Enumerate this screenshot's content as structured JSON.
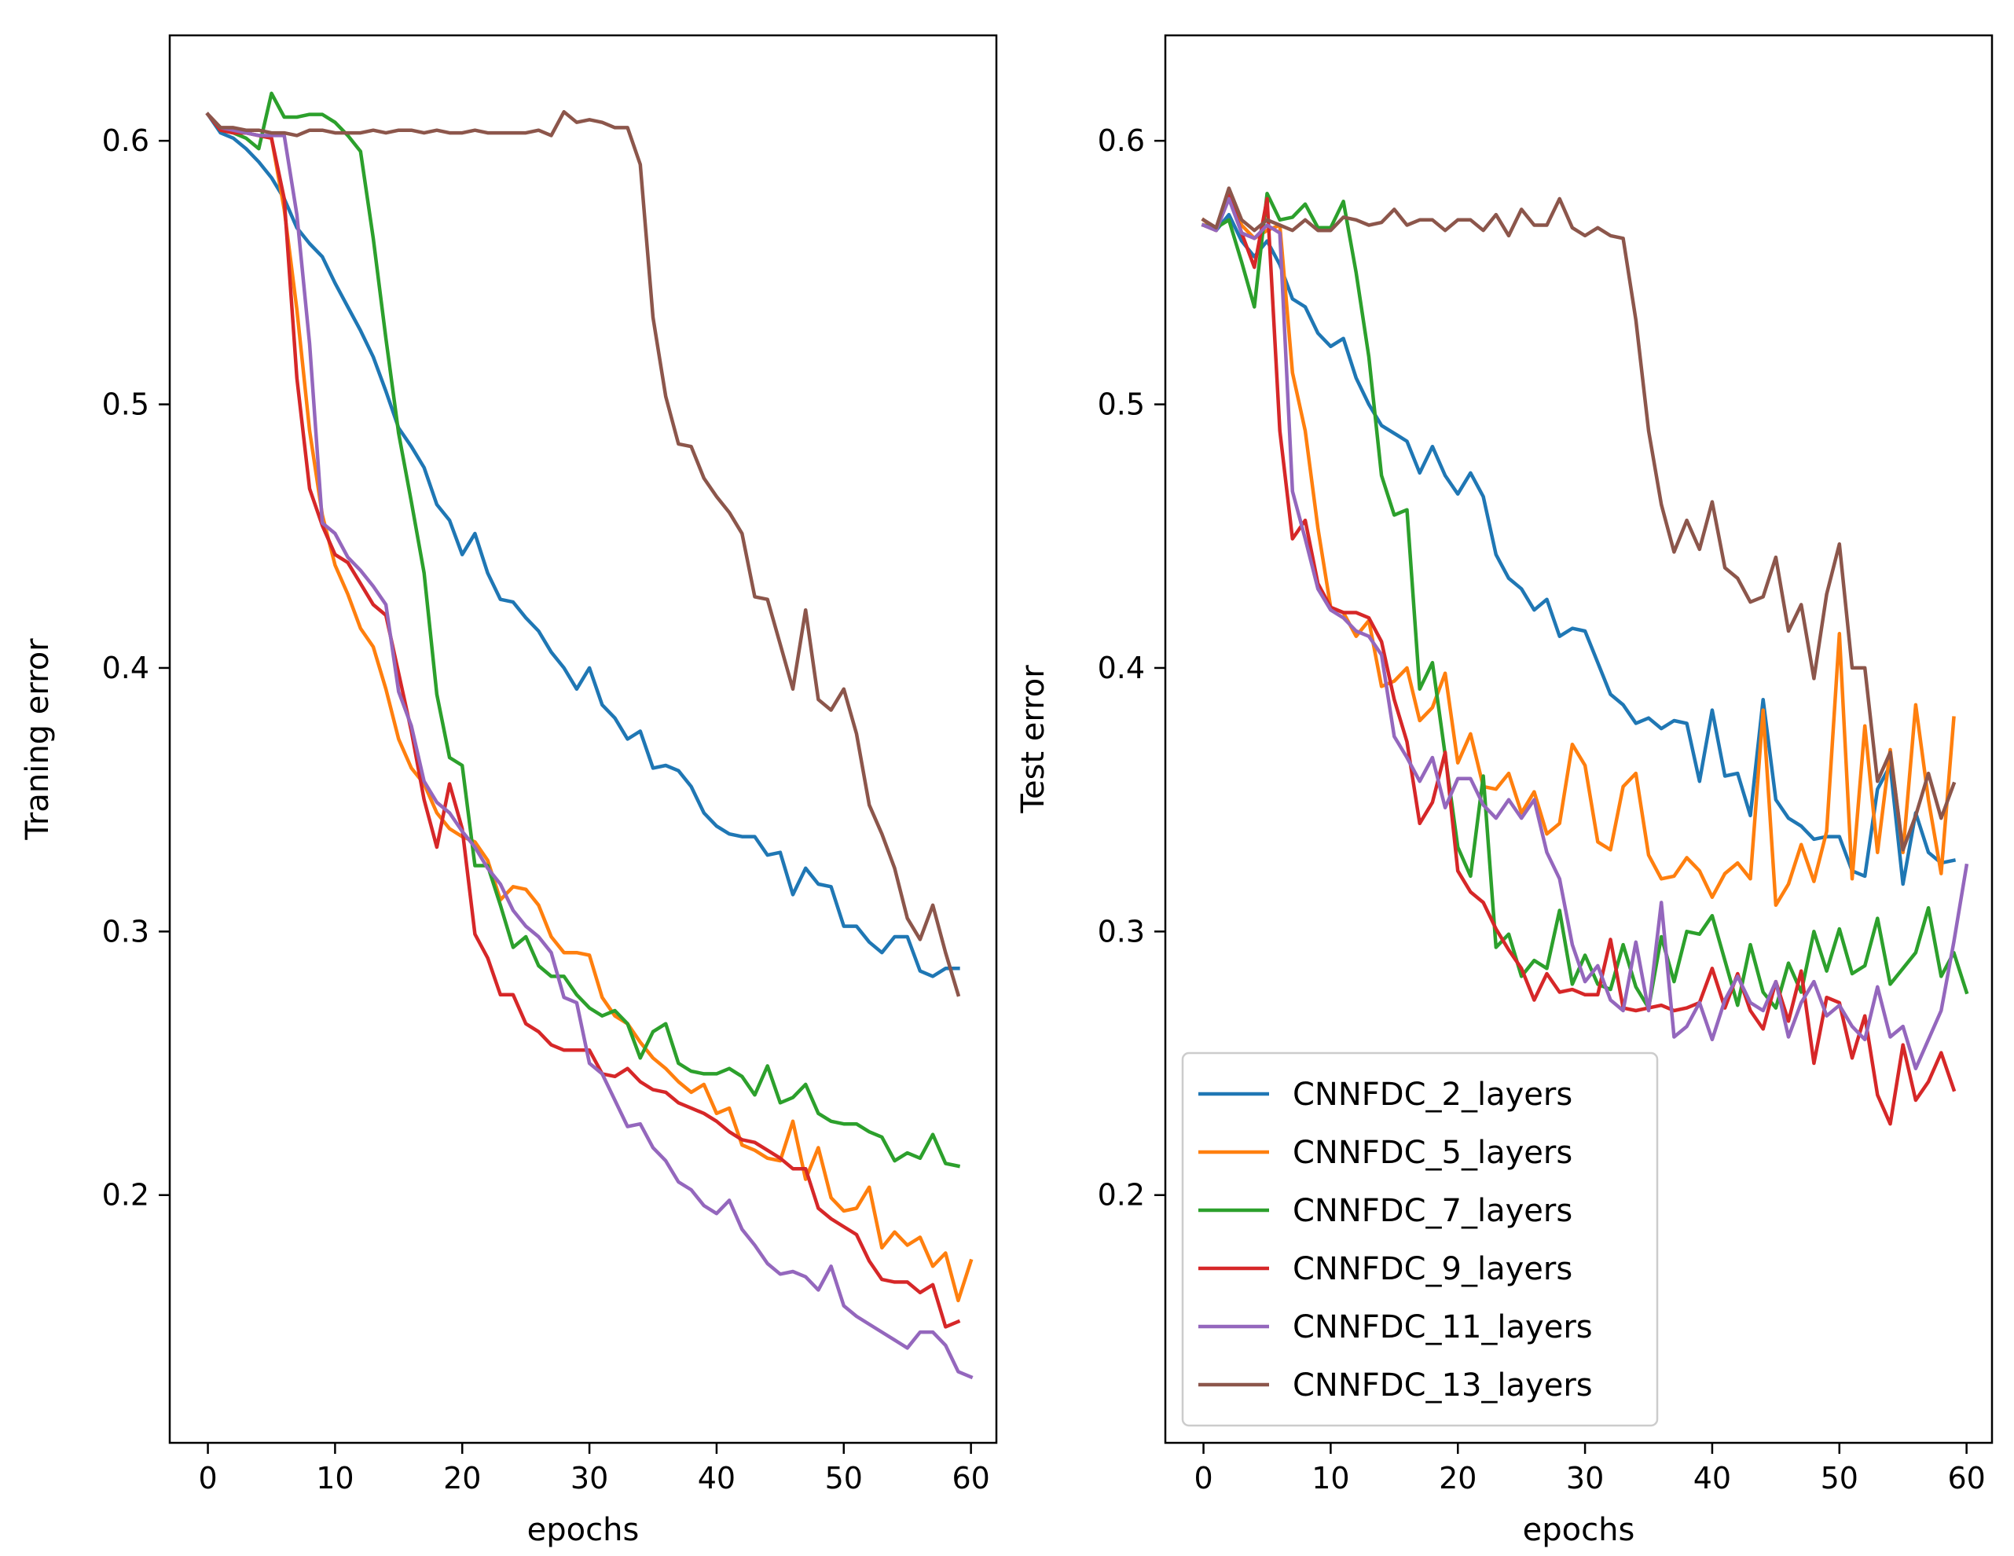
{
  "chart_data": [
    {
      "type": "line",
      "title": "",
      "xlabel": "epochs",
      "ylabel": "Traning error",
      "xlim": [
        -3,
        62
      ],
      "ylim": [
        0.106,
        0.64
      ],
      "xticks": [
        0,
        10,
        20,
        30,
        40,
        50,
        60
      ],
      "yticks": [
        0.2,
        0.3,
        0.4,
        0.5,
        0.6
      ],
      "grid": false,
      "legend": "none",
      "series": [
        {
          "name": "CNNFDC_2_layers",
          "color": "#1f77b4",
          "values": [
            0.61,
            0.603,
            0.601,
            0.597,
            0.592,
            0.586,
            0.578,
            0.567,
            0.561,
            0.556,
            0.546,
            0.537,
            0.528,
            0.518,
            0.505,
            0.491,
            0.484,
            0.476,
            0.462,
            0.456,
            0.443,
            0.451,
            0.436,
            0.426,
            0.425,
            0.419,
            0.414,
            0.406,
            0.4,
            0.392,
            0.4,
            0.386,
            0.381,
            0.373,
            0.376,
            0.362,
            0.363,
            0.361,
            0.355,
            0.345,
            0.34,
            0.337,
            0.336,
            0.336,
            0.329,
            0.33,
            0.314,
            0.324,
            0.318,
            0.317,
            0.302,
            0.302,
            0.296,
            0.292,
            0.298,
            0.298,
            0.285,
            0.283,
            0.286,
            0.286
          ]
        },
        {
          "name": "CNNFDC_5_layers",
          "color": "#ff7f0e",
          "values": [
            0.61,
            0.605,
            0.604,
            0.603,
            0.602,
            0.601,
            0.574,
            0.536,
            0.49,
            0.458,
            0.439,
            0.428,
            0.415,
            0.408,
            0.392,
            0.373,
            0.362,
            0.356,
            0.345,
            0.339,
            0.336,
            0.334,
            0.327,
            0.312,
            0.317,
            0.316,
            0.31,
            0.298,
            0.292,
            0.292,
            0.291,
            0.275,
            0.268,
            0.265,
            0.258,
            0.252,
            0.248,
            0.243,
            0.239,
            0.242,
            0.231,
            0.233,
            0.219,
            0.217,
            0.214,
            0.213,
            0.228,
            0.206,
            0.218,
            0.199,
            0.194,
            0.195,
            0.203,
            0.18,
            0.186,
            0.181,
            0.184,
            0.173,
            0.178,
            0.16,
            0.175
          ]
        },
        {
          "name": "CNNFDC_7_layers",
          "color": "#2ca02c",
          "values": [
            0.61,
            0.604,
            0.603,
            0.601,
            0.597,
            0.618,
            0.609,
            0.609,
            0.61,
            0.61,
            0.607,
            0.602,
            0.596,
            0.563,
            0.525,
            0.489,
            0.463,
            0.436,
            0.39,
            0.366,
            0.363,
            0.325,
            0.325,
            0.31,
            0.294,
            0.298,
            0.287,
            0.283,
            0.283,
            0.276,
            0.271,
            0.268,
            0.27,
            0.265,
            0.252,
            0.262,
            0.265,
            0.25,
            0.247,
            0.246,
            0.246,
            0.248,
            0.245,
            0.238,
            0.249,
            0.235,
            0.237,
            0.242,
            0.231,
            0.228,
            0.227,
            0.227,
            0.224,
            0.222,
            0.213,
            0.216,
            0.214,
            0.223,
            0.212,
            0.211
          ]
        },
        {
          "name": "CNNFDC_9_layers",
          "color": "#d62728",
          "values": [
            0.61,
            0.604,
            0.603,
            0.603,
            0.602,
            0.601,
            0.578,
            0.51,
            0.468,
            0.454,
            0.443,
            0.44,
            0.432,
            0.424,
            0.42,
            0.398,
            0.376,
            0.35,
            0.332,
            0.356,
            0.339,
            0.299,
            0.29,
            0.276,
            0.276,
            0.265,
            0.262,
            0.257,
            0.255,
            0.255,
            0.255,
            0.246,
            0.245,
            0.248,
            0.243,
            0.24,
            0.239,
            0.235,
            0.233,
            0.231,
            0.228,
            0.224,
            0.221,
            0.22,
            0.217,
            0.214,
            0.21,
            0.21,
            0.195,
            0.191,
            0.188,
            0.185,
            0.175,
            0.168,
            0.167,
            0.167,
            0.163,
            0.166,
            0.15,
            0.152
          ]
        },
        {
          "name": "CNNFDC_11_layers",
          "color": "#9467bd",
          "values": [
            0.61,
            0.605,
            0.604,
            0.603,
            0.602,
            0.602,
            0.602,
            0.572,
            0.523,
            0.455,
            0.451,
            0.442,
            0.437,
            0.431,
            0.424,
            0.391,
            0.378,
            0.357,
            0.349,
            0.345,
            0.338,
            0.332,
            0.324,
            0.318,
            0.308,
            0.302,
            0.298,
            0.292,
            0.275,
            0.273,
            0.25,
            0.246,
            0.236,
            0.226,
            0.227,
            0.218,
            0.213,
            0.205,
            0.202,
            0.196,
            0.193,
            0.198,
            0.187,
            0.181,
            0.174,
            0.17,
            0.171,
            0.169,
            0.164,
            0.173,
            0.158,
            0.154,
            0.151,
            0.148,
            0.145,
            0.142,
            0.148,
            0.148,
            0.143,
            0.133,
            0.131
          ]
        },
        {
          "name": "CNNFDC_13_layers",
          "color": "#8c564b",
          "values": [
            0.61,
            0.605,
            0.605,
            0.604,
            0.604,
            0.603,
            0.603,
            0.602,
            0.604,
            0.604,
            0.603,
            0.603,
            0.603,
            0.604,
            0.603,
            0.604,
            0.604,
            0.603,
            0.604,
            0.603,
            0.603,
            0.604,
            0.603,
            0.603,
            0.603,
            0.603,
            0.604,
            0.602,
            0.611,
            0.607,
            0.608,
            0.607,
            0.605,
            0.605,
            0.591,
            0.533,
            0.503,
            0.485,
            0.484,
            0.472,
            0.465,
            0.459,
            0.451,
            0.427,
            0.426,
            0.409,
            0.392,
            0.422,
            0.388,
            0.384,
            0.392,
            0.375,
            0.348,
            0.337,
            0.324,
            0.305,
            0.297,
            0.31,
            0.292,
            0.276
          ]
        }
      ]
    },
    {
      "type": "line",
      "title": "",
      "xlabel": "epochs",
      "ylabel": "Test error",
      "xlim": [
        -3,
        62
      ],
      "ylim": [
        0.106,
        0.64
      ],
      "xticks": [
        0,
        10,
        20,
        30,
        40,
        50,
        60
      ],
      "yticks": [
        0.2,
        0.3,
        0.4,
        0.5,
        0.6
      ],
      "grid": false,
      "legend": "lower left",
      "series": [
        {
          "name": "CNNFDC_2_layers",
          "color": "#1f77b4",
          "values": [
            0.568,
            0.566,
            0.572,
            0.562,
            0.556,
            0.562,
            0.553,
            0.54,
            0.537,
            0.527,
            0.522,
            0.525,
            0.51,
            0.5,
            0.492,
            0.489,
            0.486,
            0.474,
            0.484,
            0.473,
            0.466,
            0.474,
            0.465,
            0.443,
            0.434,
            0.43,
            0.422,
            0.426,
            0.412,
            0.415,
            0.414,
            0.402,
            0.39,
            0.386,
            0.379,
            0.381,
            0.377,
            0.38,
            0.379,
            0.357,
            0.384,
            0.359,
            0.36,
            0.344,
            0.388,
            0.35,
            0.343,
            0.34,
            0.335,
            0.336,
            0.336,
            0.323,
            0.321,
            0.354,
            0.363,
            0.318,
            0.345,
            0.33,
            0.326,
            0.327
          ]
        },
        {
          "name": "CNNFDC_5_layers",
          "color": "#ff7f0e",
          "values": [
            0.57,
            0.566,
            0.58,
            0.568,
            0.563,
            0.566,
            0.568,
            0.512,
            0.49,
            0.453,
            0.423,
            0.421,
            0.412,
            0.418,
            0.393,
            0.395,
            0.4,
            0.38,
            0.385,
            0.398,
            0.364,
            0.375,
            0.355,
            0.354,
            0.36,
            0.345,
            0.353,
            0.337,
            0.341,
            0.371,
            0.363,
            0.334,
            0.331,
            0.355,
            0.36,
            0.329,
            0.32,
            0.321,
            0.328,
            0.323,
            0.313,
            0.322,
            0.326,
            0.32,
            0.384,
            0.31,
            0.318,
            0.333,
            0.319,
            0.338,
            0.413,
            0.32,
            0.378,
            0.33,
            0.369,
            0.33,
            0.386,
            0.35,
            0.322,
            0.381
          ]
        },
        {
          "name": "CNNFDC_7_layers",
          "color": "#2ca02c",
          "values": [
            0.568,
            0.567,
            0.57,
            0.554,
            0.537,
            0.58,
            0.57,
            0.571,
            0.576,
            0.567,
            0.567,
            0.577,
            0.55,
            0.518,
            0.473,
            0.458,
            0.46,
            0.392,
            0.402,
            0.367,
            0.332,
            0.321,
            0.359,
            0.294,
            0.299,
            0.283,
            0.289,
            0.286,
            0.308,
            0.28,
            0.291,
            0.28,
            0.278,
            0.295,
            0.279,
            0.271,
            0.298,
            0.281,
            0.3,
            0.299,
            0.306,
            0.289,
            0.272,
            0.295,
            0.277,
            0.271,
            0.288,
            0.277,
            0.3,
            0.285,
            0.301,
            0.284,
            0.287,
            0.305,
            0.28,
            0.286,
            0.292,
            0.309,
            0.283,
            0.292,
            0.277
          ]
        },
        {
          "name": "CNNFDC_9_layers",
          "color": "#d62728",
          "values": [
            0.568,
            0.566,
            0.58,
            0.565,
            0.552,
            0.578,
            0.49,
            0.449,
            0.456,
            0.432,
            0.423,
            0.421,
            0.421,
            0.419,
            0.41,
            0.388,
            0.372,
            0.341,
            0.349,
            0.368,
            0.323,
            0.315,
            0.311,
            0.301,
            0.293,
            0.286,
            0.274,
            0.284,
            0.277,
            0.278,
            0.276,
            0.276,
            0.297,
            0.271,
            0.27,
            0.271,
            0.272,
            0.27,
            0.271,
            0.273,
            0.286,
            0.271,
            0.284,
            0.27,
            0.263,
            0.281,
            0.266,
            0.285,
            0.25,
            0.275,
            0.273,
            0.252,
            0.268,
            0.238,
            0.227,
            0.257,
            0.236,
            0.243,
            0.254,
            0.24
          ]
        },
        {
          "name": "CNNFDC_11_layers",
          "color": "#9467bd",
          "values": [
            0.568,
            0.566,
            0.578,
            0.565,
            0.563,
            0.568,
            0.565,
            0.467,
            0.449,
            0.43,
            0.422,
            0.419,
            0.414,
            0.412,
            0.405,
            0.374,
            0.366,
            0.357,
            0.366,
            0.347,
            0.358,
            0.358,
            0.348,
            0.343,
            0.35,
            0.343,
            0.35,
            0.33,
            0.32,
            0.295,
            0.281,
            0.287,
            0.274,
            0.27,
            0.296,
            0.27,
            0.311,
            0.26,
            0.264,
            0.273,
            0.259,
            0.274,
            0.283,
            0.273,
            0.27,
            0.281,
            0.26,
            0.273,
            0.281,
            0.268,
            0.272,
            0.264,
            0.259,
            0.279,
            0.26,
            0.264,
            0.248,
            0.259,
            0.27,
            0.296,
            0.325
          ]
        },
        {
          "name": "CNNFDC_13_layers",
          "color": "#8c564b",
          "values": [
            0.57,
            0.567,
            0.582,
            0.57,
            0.566,
            0.57,
            0.568,
            0.566,
            0.57,
            0.566,
            0.566,
            0.571,
            0.57,
            0.568,
            0.569,
            0.574,
            0.568,
            0.57,
            0.57,
            0.566,
            0.57,
            0.57,
            0.566,
            0.572,
            0.564,
            0.574,
            0.568,
            0.568,
            0.578,
            0.567,
            0.564,
            0.567,
            0.564,
            0.563,
            0.532,
            0.49,
            0.462,
            0.444,
            0.456,
            0.445,
            0.463,
            0.438,
            0.434,
            0.425,
            0.427,
            0.442,
            0.414,
            0.424,
            0.396,
            0.428,
            0.447,
            0.4,
            0.4,
            0.357,
            0.368,
            0.331,
            0.344,
            0.36,
            0.343,
            0.356
          ]
        }
      ]
    }
  ]
}
